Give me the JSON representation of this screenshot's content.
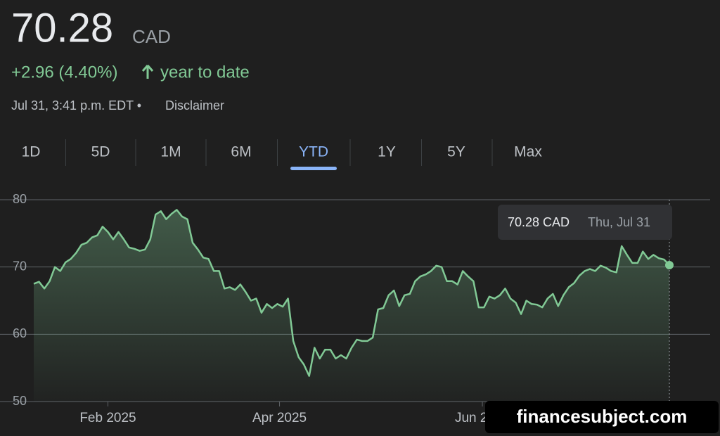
{
  "header": {
    "price": "70.28",
    "currency": "CAD",
    "change": "+2.96 (4.40%)",
    "period": "year to date",
    "timestamp": "Jul 31, 3:41 p.m. EDT •",
    "disclaimer": "Disclaimer"
  },
  "tabs": [
    "1D",
    "5D",
    "1M",
    "6M",
    "YTD",
    "1Y",
    "5Y",
    "Max"
  ],
  "active_tab": 4,
  "tooltip": {
    "value": "70.28 CAD",
    "date": "Thu, Jul 31"
  },
  "watermark": "financesubject.com",
  "chart_data": {
    "type": "line",
    "color": "#81c995",
    "grid": true,
    "values": [
      67.5,
      67.8,
      66.8,
      67.9,
      70.0,
      69.4,
      70.7,
      71.2,
      72.1,
      73.3,
      73.6,
      74.4,
      74.7,
      76.0,
      75.2,
      74.1,
      75.2,
      74.1,
      72.9,
      72.7,
      72.4,
      72.6,
      74.1,
      77.8,
      78.3,
      77.1,
      77.9,
      78.5,
      77.5,
      77.1,
      73.6,
      72.6,
      71.4,
      71.2,
      69.4,
      69.4,
      66.8,
      67.0,
      66.6,
      67.4,
      66.3,
      65.0,
      65.3,
      63.2,
      64.5,
      63.9,
      64.5,
      64.1,
      65.3,
      59.0,
      56.6,
      55.5,
      53.8,
      58.0,
      56.4,
      57.7,
      57.7,
      56.4,
      56.9,
      56.4,
      58.0,
      59.2,
      59.0,
      59.0,
      59.5,
      63.7,
      63.9,
      65.8,
      66.5,
      64.2,
      65.8,
      66.0,
      67.9,
      68.6,
      68.9,
      69.4,
      70.2,
      70.0,
      67.9,
      67.9,
      67.4,
      69.4,
      68.6,
      67.9,
      64.0,
      64.0,
      65.6,
      65.3,
      65.8,
      66.8,
      65.3,
      64.7,
      63.0,
      65.0,
      64.5,
      64.4,
      64.0,
      65.3,
      66.0,
      64.2,
      65.8,
      67.0,
      67.6,
      68.7,
      69.4,
      69.7,
      69.4,
      70.2,
      69.9,
      69.4,
      69.2,
      73.1,
      71.8,
      70.6,
      70.6,
      72.3,
      71.2,
      71.8,
      71.3,
      71.1,
      70.28
    ],
    "xlim": [
      0,
      120
    ],
    "xticks": [
      {
        "value": 14,
        "label": "Feb 2025"
      },
      {
        "value": 46.4,
        "label": "Apr 2025"
      },
      {
        "value": 84.7,
        "label": "Jun 2025"
      }
    ],
    "ylim": [
      50,
      80
    ],
    "yticks": [
      50,
      60,
      70,
      80
    ]
  }
}
